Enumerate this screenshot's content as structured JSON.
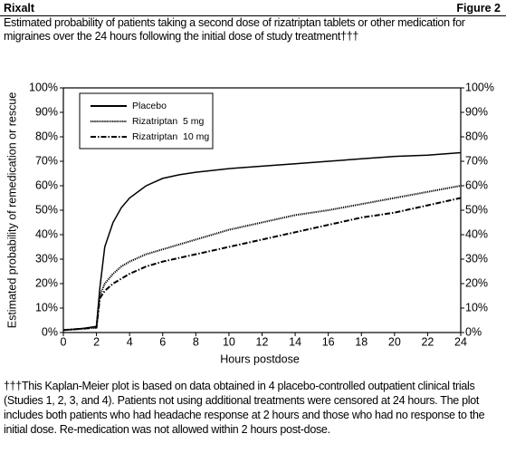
{
  "header": {
    "left": "Rixalt",
    "right": "Figure 2"
  },
  "chart_data": {
    "type": "line",
    "title": "Estimated probability of patients taking a second dose of rizatriptan tablets or other medication for migraines over the 24 hours following the initial dose of study treatment†††",
    "xlabel": "Hours postdose",
    "ylabel": "Estimated probability of remedication or rescue",
    "x": [
      0,
      1,
      2,
      2.2,
      2.5,
      3,
      3.5,
      4,
      5,
      6,
      7,
      8,
      10,
      12,
      14,
      16,
      18,
      20,
      22,
      24
    ],
    "series": [
      {
        "name": "Placebo",
        "color": "#000000",
        "line_style": "solid",
        "values": [
          1,
          1.5,
          2.5,
          18,
          35,
          45,
          51,
          55,
          60,
          63,
          64.5,
          65.5,
          67,
          68,
          69,
          70,
          71,
          72,
          72.5,
          73.5
        ]
      },
      {
        "name": "Rizatriptan  5 mg",
        "color": "#000000",
        "line_style": "dotted",
        "values": [
          1,
          1.5,
          2,
          15,
          20,
          24,
          27,
          29,
          32,
          34,
          36,
          38,
          42,
          45,
          48,
          50,
          52.5,
          55,
          57.5,
          60
        ]
      },
      {
        "name": "Rizatriptan  10 mg",
        "color": "#000000",
        "line_style": "dashdot",
        "values": [
          1,
          1.5,
          2,
          14,
          17,
          20,
          22,
          24,
          27,
          29,
          30.5,
          32,
          35,
          38,
          41,
          44,
          47,
          49,
          52,
          55
        ]
      }
    ],
    "xlim": [
      0,
      24
    ],
    "xticks": [
      0,
      2,
      4,
      6,
      8,
      10,
      12,
      14,
      16,
      18,
      20,
      22,
      24
    ],
    "ylim": [
      0,
      100
    ],
    "yticks": [
      {
        "value": 0,
        "label": "0%"
      },
      {
        "value": 10,
        "label": "10%"
      },
      {
        "value": 20,
        "label": "20%"
      },
      {
        "value": 30,
        "label": "30%"
      },
      {
        "value": 40,
        "label": "40%"
      },
      {
        "value": 50,
        "label": "50%"
      },
      {
        "value": 60,
        "label": "60%"
      },
      {
        "value": 70,
        "label": "70%"
      },
      {
        "value": 80,
        "label": "80%"
      },
      {
        "value": 90,
        "label": "90%"
      },
      {
        "value": 100,
        "label": "100%"
      }
    ],
    "y2lim": [
      0,
      100
    ],
    "y2ticks": [
      {
        "value": 0,
        "label": "0%"
      },
      {
        "value": 10,
        "label": "10%"
      },
      {
        "value": 20,
        "label": "20%"
      },
      {
        "value": 30,
        "label": "30%"
      },
      {
        "value": 40,
        "label": "40%"
      },
      {
        "value": 50,
        "label": "50%"
      },
      {
        "value": 60,
        "label": "60%"
      },
      {
        "value": 70,
        "label": "70%"
      },
      {
        "value": 80,
        "label": "80%"
      },
      {
        "value": 90,
        "label": "90%"
      },
      {
        "value": 100,
        "label": "100%"
      }
    ],
    "legend": "upper left",
    "grid": false
  },
  "footnote": "†††This Kaplan-Meier plot is based on data obtained in 4 placebo-controlled outpatient clinical trials (Studies 1, 2, 3, and 4). Patients not using additional treatments were censored at 24 hours. The plot includes both patients who had headache response at 2 hours and those who had no response to the initial dose. Re-medication was not allowed within 2 hours post-dose."
}
